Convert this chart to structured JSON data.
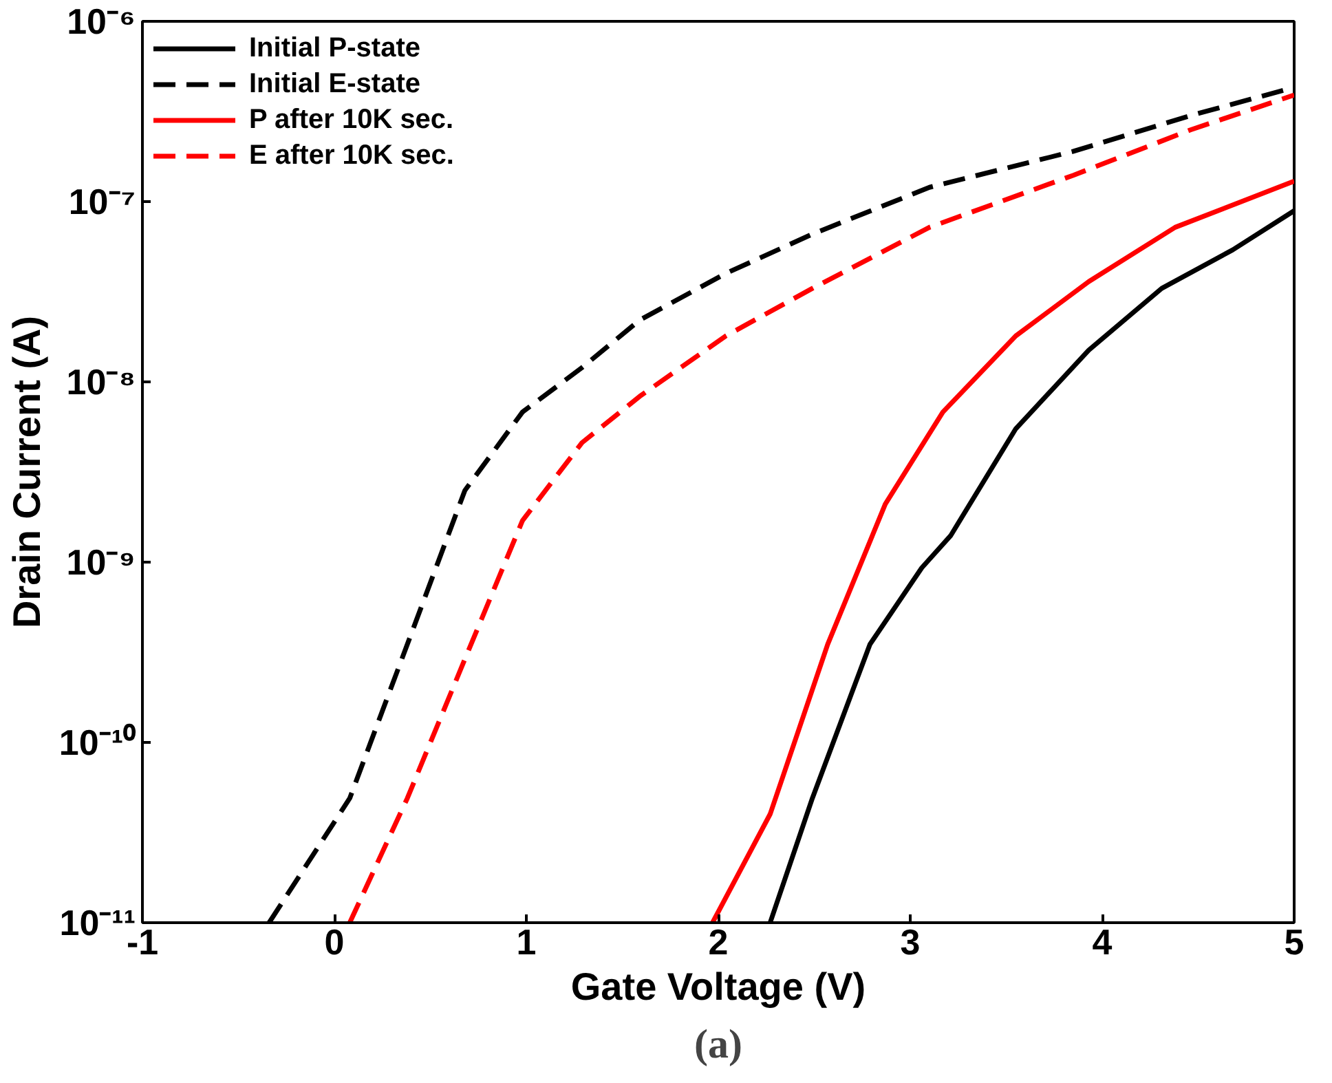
{
  "chart_data": {
    "type": "line",
    "xlabel": "Gate Voltage (V)",
    "ylabel": "Drain Current (A)",
    "annotations": [
      "(a)"
    ],
    "log": "y",
    "grid": false,
    "legend": "top left",
    "marker": "none",
    "xlim": [
      -1,
      5
    ],
    "xticks": [
      -1,
      0,
      1,
      2,
      3,
      4,
      5
    ],
    "ylim": [
      1e-11,
      1e-06
    ],
    "yticks": [
      {
        "value": 1e-11,
        "label": "10⁻¹¹"
      },
      {
        "value": 1e-10,
        "label": "10⁻¹⁰"
      },
      {
        "value": 1e-09,
        "label": "10⁻⁹"
      },
      {
        "value": 1e-08,
        "label": "10⁻⁸"
      },
      {
        "value": 1e-07,
        "label": "10⁻⁷"
      },
      {
        "value": 1e-06,
        "label": "10⁻⁶"
      }
    ],
    "series": [
      {
        "name": "Initial P-state",
        "color": "#000000",
        "line_style": "solid",
        "x": [
          2.27,
          2.49,
          2.79,
          3.06,
          3.21,
          3.55,
          3.93,
          4.31,
          4.68,
          5
        ],
        "values": [
          1e-11,
          4.9e-11,
          3.5e-10,
          9.3e-10,
          1.4e-09,
          5.5e-09,
          1.5e-08,
          3.3e-08,
          5.4e-08,
          8.9e-08
        ]
      },
      {
        "name": "Initial E-state",
        "color": "#000000",
        "line_style": "dashed",
        "x": [
          -0.34,
          0.08,
          0.38,
          0.68,
          0.98,
          1.29,
          1.59,
          2.04,
          2.49,
          3.1,
          3.85,
          4.46,
          5
        ],
        "values": [
          1e-11,
          4.9e-11,
          3.5e-10,
          2.5e-09,
          6.8e-09,
          1.2e-08,
          2.2e-08,
          4e-08,
          6.6e-08,
          1.2e-07,
          1.9e-07,
          3e-07,
          4.3e-07
        ]
      },
      {
        "name": "P after 10K sec.",
        "color": "#ff0000",
        "line_style": "solid",
        "x": [
          1.97,
          2.27,
          2.57,
          2.87,
          3.17,
          3.55,
          3.93,
          4.38,
          5
        ],
        "values": [
          1e-11,
          4e-11,
          3.5e-10,
          2.1e-09,
          6.8e-09,
          1.8e-08,
          3.6e-08,
          7.2e-08,
          1.3e-07
        ]
      },
      {
        "name": "E after 10K sec.",
        "color": "#ff0000",
        "line_style": "dashed",
        "x": [
          0.08,
          0.38,
          0.68,
          0.98,
          1.29,
          1.59,
          2.04,
          2.49,
          3.1,
          3.85,
          4.46,
          5
        ],
        "values": [
          1e-11,
          4.9e-11,
          2.9e-10,
          1.7e-09,
          4.6e-09,
          8.3e-09,
          1.8e-08,
          3.3e-08,
          7.2e-08,
          1.4e-07,
          2.5e-07,
          3.9e-07
        ]
      }
    ]
  }
}
